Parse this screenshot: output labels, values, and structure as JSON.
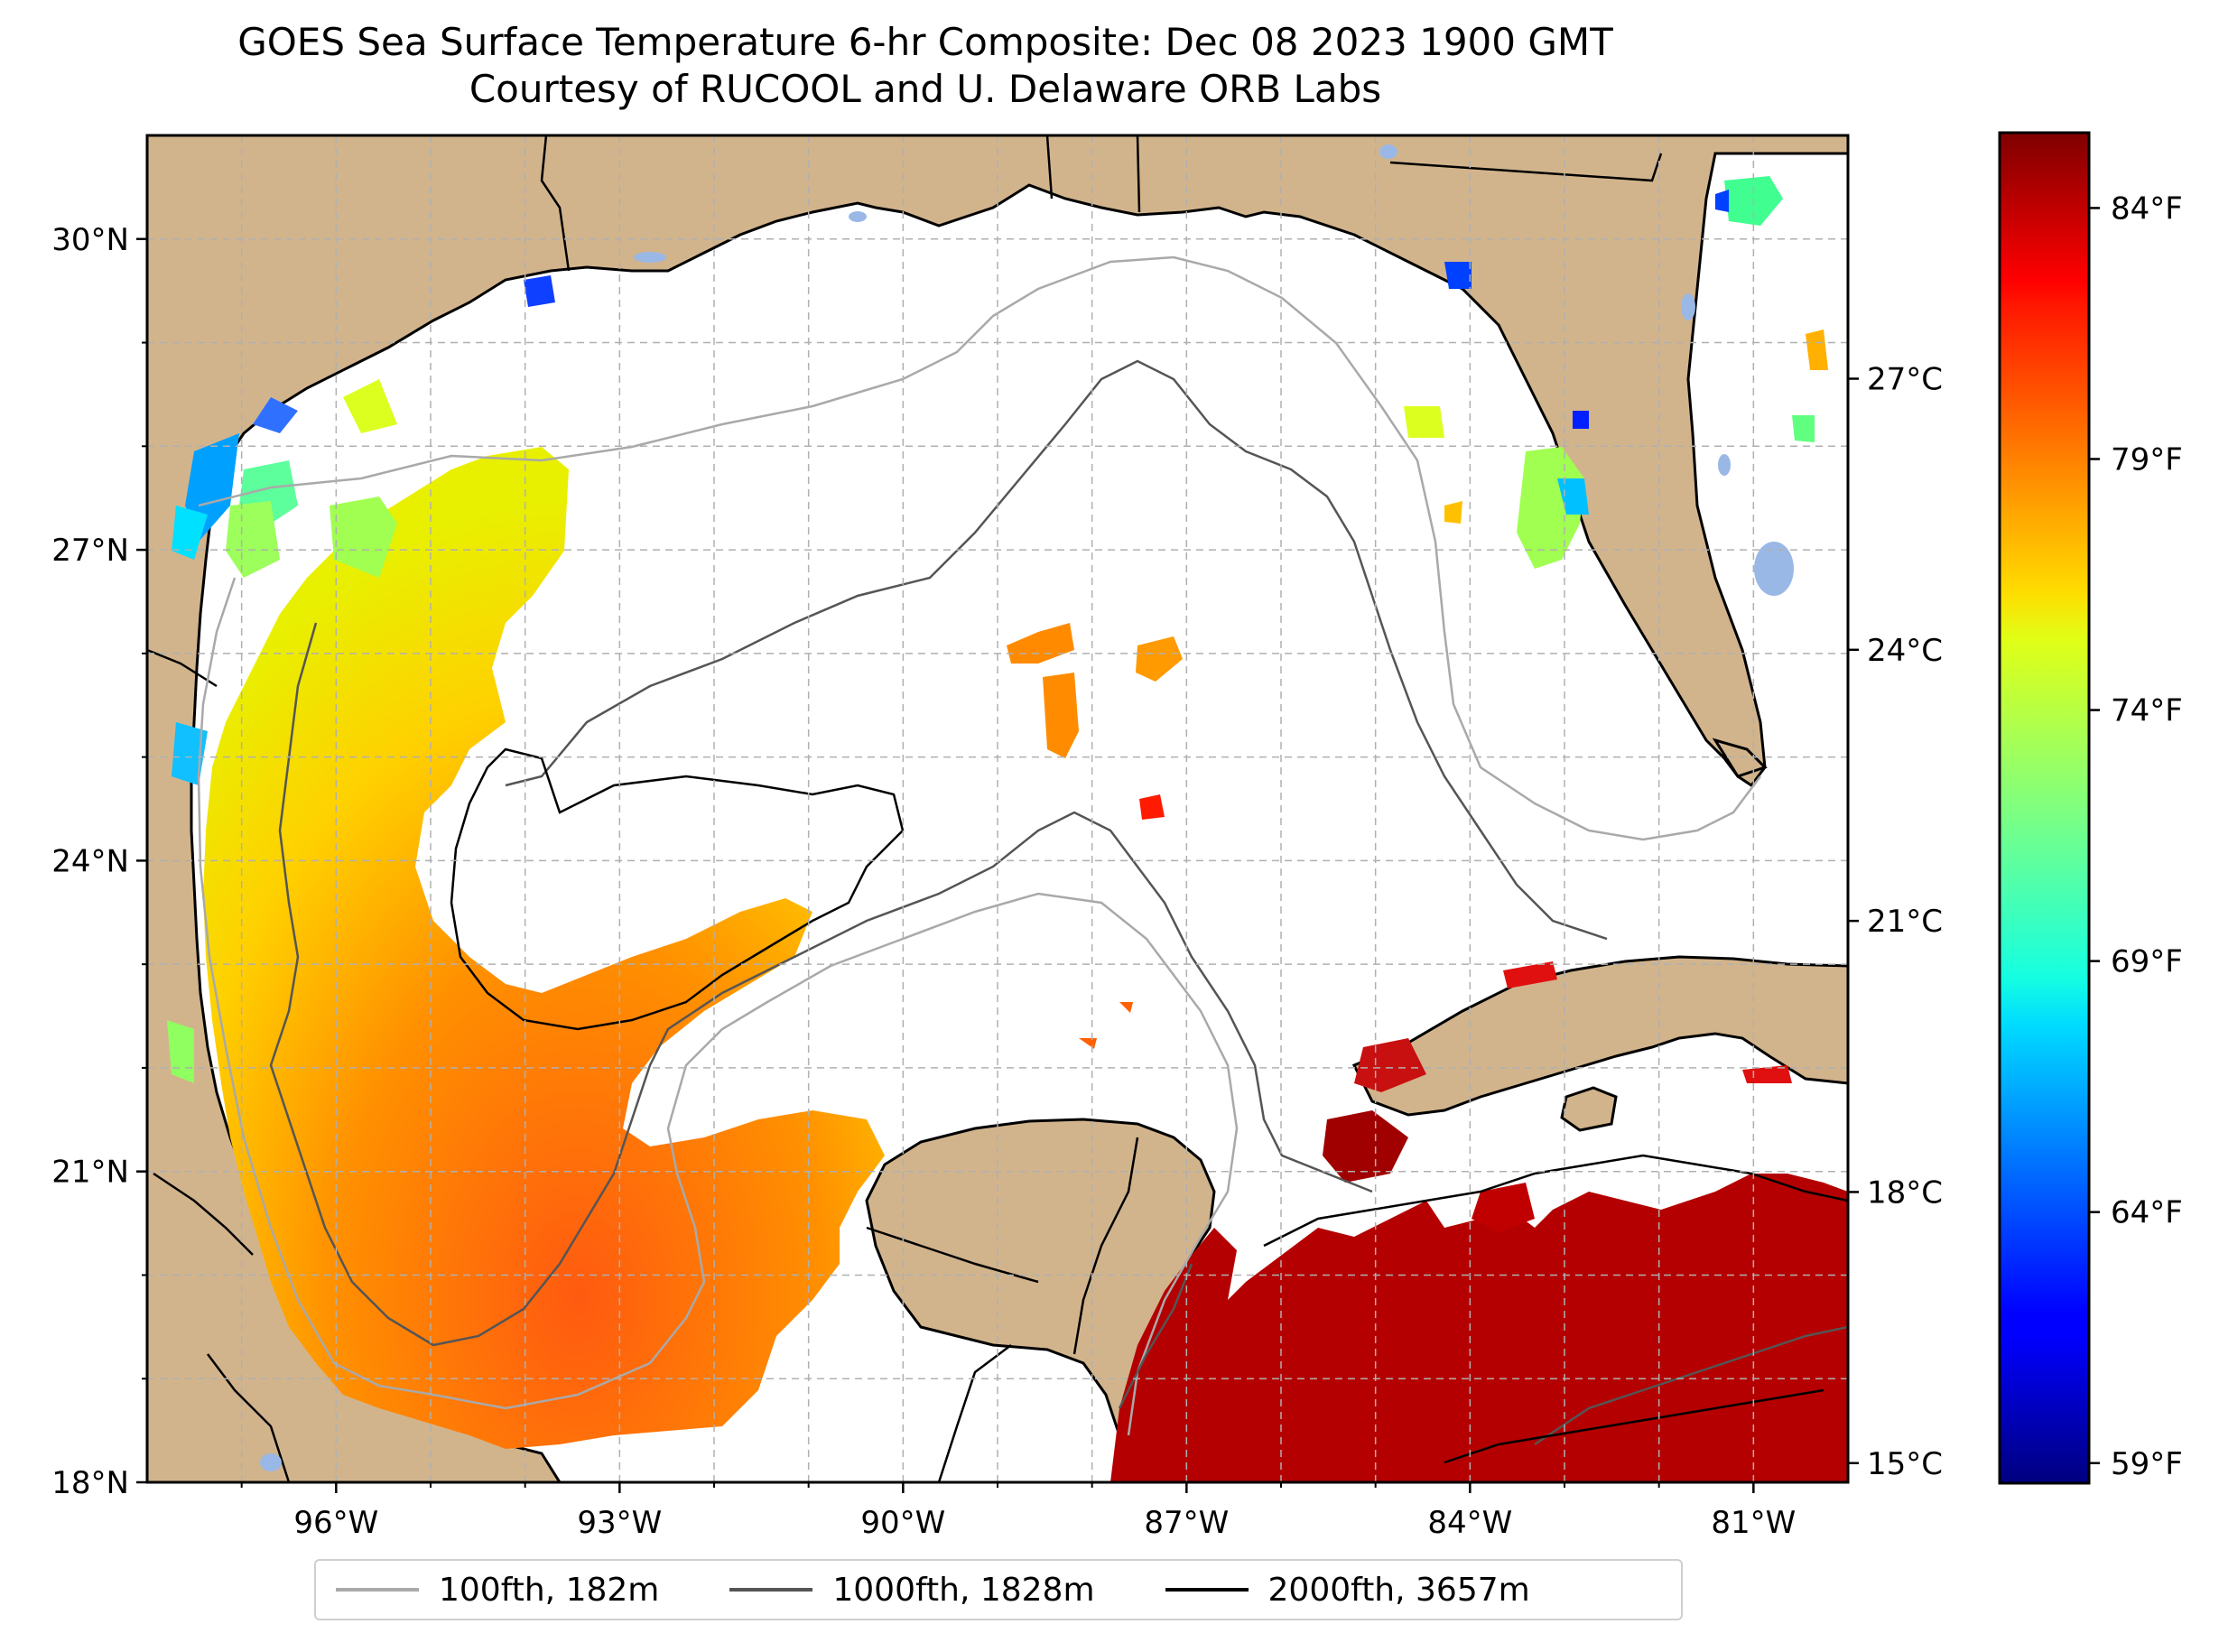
{
  "title": {
    "line1": "GOES Sea Surface Temperature 6-hr Composite: Dec 08 2023 1900 GMT",
    "line2": "Courtesy of RUCOOL and U. Delaware ORB Labs"
  },
  "map": {
    "lon_range": [
      -98,
      -80
    ],
    "lat_range": [
      18,
      31
    ],
    "lat_ticks": [
      {
        "value": 30,
        "label": "30°N"
      },
      {
        "value": 27,
        "label": "27°N"
      },
      {
        "value": 24,
        "label": "24°N"
      },
      {
        "value": 21,
        "label": "21°N"
      },
      {
        "value": 18,
        "label": "18°N"
      }
    ],
    "lon_ticks": [
      {
        "value": -96,
        "label": "96°W"
      },
      {
        "value": -93,
        "label": "93°W"
      },
      {
        "value": -90,
        "label": "90°W"
      },
      {
        "value": -87,
        "label": "87°W"
      },
      {
        "value": -84,
        "label": "84°W"
      },
      {
        "value": -81,
        "label": "81°W"
      }
    ],
    "gridlines": "dashed",
    "colors": {
      "land": "#d2b48c",
      "ocean_no_data": "#ffffff",
      "inland_water": "#9ab8e6",
      "coastline": "#000000"
    }
  },
  "colorbar": {
    "colormap": "jet",
    "celsius_ticks": [
      {
        "value": 15,
        "label": "15°C"
      },
      {
        "value": 18,
        "label": "18°C"
      },
      {
        "value": 21,
        "label": "21°C"
      },
      {
        "value": 24,
        "label": "24°C"
      },
      {
        "value": 27,
        "label": "27°C"
      }
    ],
    "fahrenheit_ticks": [
      {
        "value": 59,
        "label": "59°F"
      },
      {
        "value": 64,
        "label": "64°F"
      },
      {
        "value": 69,
        "label": "69°F"
      },
      {
        "value": 74,
        "label": "74°F"
      },
      {
        "value": 79,
        "label": "79°F"
      },
      {
        "value": 84,
        "label": "84°F"
      }
    ]
  },
  "legend": {
    "entries": [
      {
        "label": "100fth, 182m",
        "color": "#a9a9a9"
      },
      {
        "label": "1000fth, 1828m",
        "color": "#555555"
      },
      {
        "label": "2000fth, 3657m",
        "color": "#000000"
      }
    ]
  }
}
